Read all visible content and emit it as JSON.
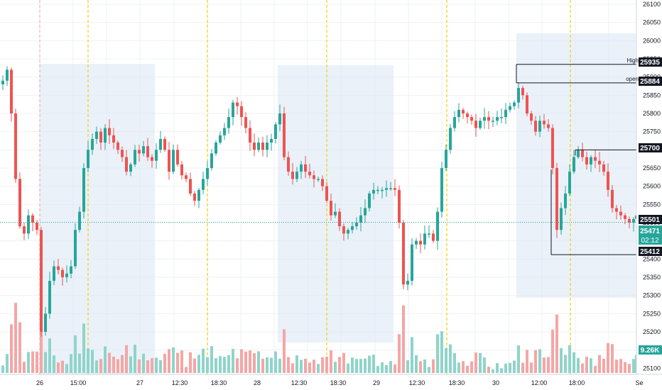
{
  "symbol_context": "Intraday candlestick chart",
  "colors": {
    "up": "#26a69a",
    "down": "#ef5350",
    "up_volume": "#8fd4c9",
    "down_volume": "#f5a6a5",
    "session_box": "#dce8f5",
    "session_line": "#f0d000",
    "grid": "#eef1f4",
    "current_line": "#26a69a",
    "label_dark": "#131722",
    "label_teal": "#26a69a"
  },
  "price_axis": {
    "ticks": [
      "26100",
      "26050",
      "26000",
      "25950",
      "25900",
      "25850",
      "25800",
      "25750",
      "25700",
      "25650",
      "25600",
      "25550",
      "25500",
      "25450",
      "25400",
      "25350",
      "25300",
      "25250",
      "25200",
      "25150",
      "25100"
    ]
  },
  "time_axis": {
    "labels": [
      "26",
      "15:00",
      "27",
      "12:30",
      "18:30",
      "28",
      "12:30",
      "18:30",
      "29",
      "12:30",
      "18:30",
      "30",
      "12:00",
      "18:00",
      "Se"
    ]
  },
  "price_labels": {
    "high_tag": "High",
    "high_value": "25935",
    "open_tag": "open",
    "open_value": "25884",
    "level_1": "25700",
    "current": "25501",
    "last": "25471",
    "countdown": "02:12",
    "low_value": "25412",
    "volume": "9.26K"
  },
  "chart_data": {
    "type": "candlestick",
    "y_range": [
      25070,
      26110
    ],
    "current_price": 25501,
    "reference_levels": [
      25935,
      25884,
      25700,
      25501,
      25412
    ]
  }
}
